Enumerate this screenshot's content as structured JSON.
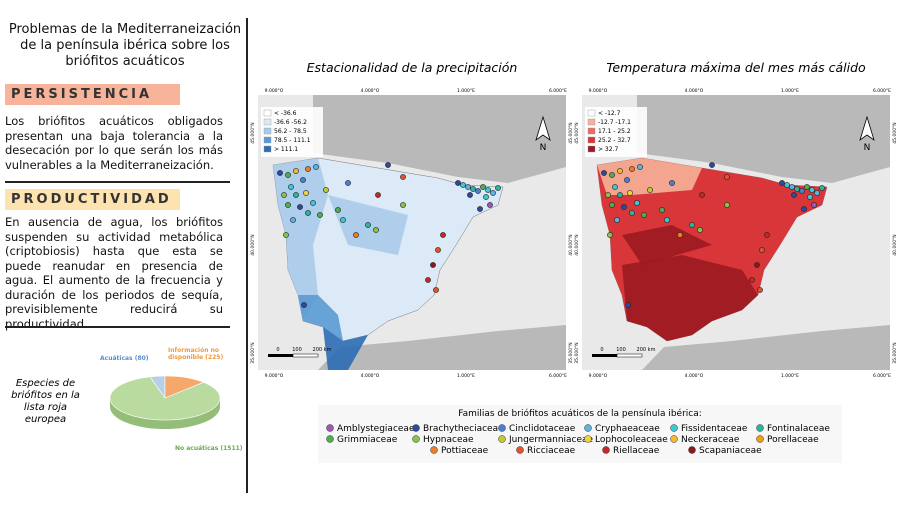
{
  "header": {
    "title": "Problemas de la Mediterraneización de la península ibérica sobre los briófitos acuáticos"
  },
  "sections": [
    {
      "heading": "PERSISTENCIA",
      "text": "Los briófitos acuáticos obligados presentan una baja tolerancia a la desecación por lo que serán los más vulnerables a la Mediterraneización."
    },
    {
      "heading": "PRODUCTIVIDAD",
      "text": "En ausencia de agua, los briófitos suspenden su actividad metabólica (criptobiosis) hasta que esta se puede reanudar en presencia de agua. El aumento de la frecuencia y duración de los periodos de sequía, previsiblemente reducirá su productividad."
    }
  ],
  "chart_data": {
    "type": "pie",
    "annotation": "Especies de briófitos en la lista roja europea",
    "values": [
      80,
      225,
      1511
    ],
    "value_labels": [
      "Acuáticas (80)",
      "Información no disponible (225)",
      "No acuáticas (1511)"
    ],
    "colors": [
      "#b8cfe8",
      "#f5a86a",
      "#b9dba0"
    ]
  },
  "map_axes": {
    "x": [
      "9.000°O",
      "4.000°O",
      "1.000°E",
      "6.000°E"
    ],
    "y": [
      "45.000°N",
      "40.000°N",
      "35.000°N"
    ],
    "scale": [
      "0",
      "100",
      "200 km"
    ],
    "north": "N"
  },
  "maps": [
    {
      "title": "Estacionalidad de la precipitación",
      "legend": [
        {
          "label": "< -36.6",
          "color": "#ffffff"
        },
        {
          "label": "-36.6 -56.2",
          "color": "#dce9f6"
        },
        {
          "label": "56.2 - 78.5",
          "color": "#a8cbea"
        },
        {
          "label": "78.5 - 111.1",
          "color": "#5b9bd5"
        },
        {
          "label": "> 111.1",
          "color": "#2e6db4"
        }
      ]
    },
    {
      "title": "Temperatura máxima del mes más cálido",
      "legend": [
        {
          "label": "< -12.7",
          "color": "#ffffff"
        },
        {
          "label": "-12.7 -17.1",
          "color": "#f6b19a"
        },
        {
          "label": "17.1 - 25.2",
          "color": "#ee6b5e"
        },
        {
          "label": "25.2 - 32.7",
          "color": "#d8363a"
        },
        {
          "label": "> 32.7",
          "color": "#9c1a22"
        }
      ]
    }
  ],
  "families": {
    "title": "Familias de briófitos acuáticos de la pensínula ibérica:",
    "items": [
      {
        "name": "Amblystegiaceae",
        "color": "#9b59b6"
      },
      {
        "name": "Brachytheciaceae",
        "color": "#2e4a9e"
      },
      {
        "name": "Cinclidotaceae",
        "color": "#4a7fd4"
      },
      {
        "name": "Cryphaeaceae",
        "color": "#5ab4e5"
      },
      {
        "name": "Fissidentaceae",
        "color": "#3cc8d8"
      },
      {
        "name": "Fontinalaceae",
        "color": "#2bb5a0"
      },
      {
        "name": "Grimmiaceae",
        "color": "#4caf50"
      },
      {
        "name": "Hypnaceae",
        "color": "#8bc34a"
      },
      {
        "name": "Jungermanniaceae",
        "color": "#c0ca33"
      },
      {
        "name": "Lophocoleaceae",
        "color": "#f2d43d"
      },
      {
        "name": "Neckeraceae",
        "color": "#f5b82e"
      },
      {
        "name": "Porellaceae",
        "color": "#f39c12"
      },
      {
        "name": "Pottiaceae",
        "color": "#f07c2a"
      },
      {
        "name": "Ricciaceae",
        "color": "#e5502e"
      },
      {
        "name": "Riellaceae",
        "color": "#c62828"
      },
      {
        "name": "Scapaniaceae",
        "color": "#8b1a1a"
      }
    ]
  }
}
